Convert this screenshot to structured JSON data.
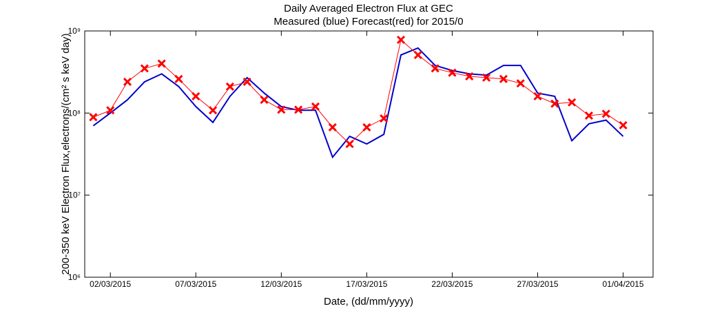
{
  "chart_data": {
    "type": "line",
    "title": "Daily Averaged Electron Flux at GEC",
    "subtitle": "Measured (blue) Forecast(red) for 2015/0",
    "xlabel": "Date, (dd/mm/yyyy)",
    "ylabel": "200-350 keV Electron Flux,electrons/(cm² s keV day)",
    "log_y": true,
    "grid": false,
    "x": [
      "01/03/2015",
      "02/03/2015",
      "03/03/2015",
      "04/03/2015",
      "05/03/2015",
      "06/03/2015",
      "07/03/2015",
      "08/03/2015",
      "09/03/2015",
      "10/03/2015",
      "11/03/2015",
      "12/03/2015",
      "13/03/2015",
      "14/03/2015",
      "15/03/2015",
      "16/03/2015",
      "17/03/2015",
      "18/03/2015",
      "19/03/2015",
      "20/03/2015",
      "21/03/2015",
      "22/03/2015",
      "23/03/2015",
      "24/03/2015",
      "25/03/2015",
      "26/03/2015",
      "27/03/2015",
      "28/03/2015",
      "29/03/2015",
      "30/03/2015",
      "31/03/2015",
      "01/04/2015"
    ],
    "series": [
      {
        "name": "Measured",
        "color": "#0000cc",
        "marker": "none",
        "values": [
          70000000,
          100000000,
          145000000,
          240000000,
          300000000,
          210000000,
          120000000,
          77000000,
          160000000,
          270000000,
          175000000,
          120000000,
          108000000,
          108000000,
          29000000,
          52000000,
          42000000,
          55000000,
          510000000,
          620000000,
          380000000,
          330000000,
          300000000,
          290000000,
          380000000,
          380000000,
          175000000,
          160000000,
          46000000,
          74000000,
          82000000,
          52000000
        ]
      },
      {
        "name": "Forecast",
        "color": "#ff0000",
        "marker": "x",
        "values": [
          89000000,
          108000000,
          240000000,
          350000000,
          400000000,
          260000000,
          160000000,
          108000000,
          210000000,
          240000000,
          145000000,
          110000000,
          110000000,
          120000000,
          67000000,
          42000000,
          67000000,
          86000000,
          780000000,
          510000000,
          350000000,
          310000000,
          280000000,
          270000000,
          260000000,
          230000000,
          160000000,
          130000000,
          135000000,
          93000000,
          98000000,
          71000000
        ]
      }
    ],
    "xlim": [
      "28/02/2015 12:00",
      "02/04/2015 18:00"
    ],
    "xticks": [
      "02/03/2015",
      "07/03/2015",
      "12/03/2015",
      "17/03/2015",
      "22/03/2015",
      "27/03/2015",
      "01/04/2015"
    ],
    "ylim": [
      1000000,
      1000000000
    ],
    "yticks": [
      {
        "value": 1000000,
        "label": "10⁶"
      },
      {
        "value": 10000000,
        "label": "10⁷"
      },
      {
        "value": 100000000,
        "label": "10⁸"
      },
      {
        "value": 1000000000,
        "label": "10⁹"
      }
    ]
  }
}
